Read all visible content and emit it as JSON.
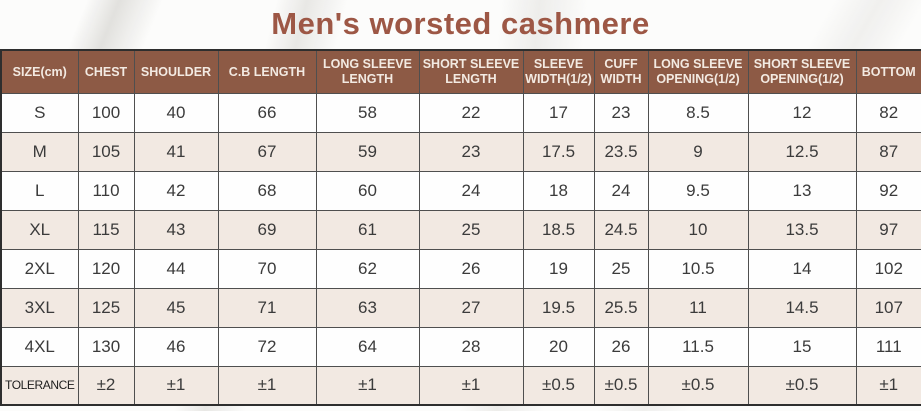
{
  "title": "Men's worsted cashmere",
  "colors": {
    "title": "#9d5745",
    "header_bg": "#8d5a45",
    "header_text": "#f3eae2",
    "row_beige": "#f2e9e2",
    "row_white": "#fefefe",
    "border": "#4f4f4f"
  },
  "chart_data": {
    "type": "table",
    "title": "Men's worsted cashmere",
    "headers": [
      "SIZE(cm)",
      "CHEST",
      "SHOULDER",
      "C.B LENGTH",
      "LONG SLEEVE LENGTH",
      "SHORT SLEEVE LENGTH",
      "SLEEVE WIDTH(1/2)",
      "CUFF WIDTH",
      "LONG SLEEVE OPENING(1/2)",
      "SHORT SLEEVE OPENING(1/2)",
      "BOTTOM"
    ],
    "rows": [
      {
        "size": "S",
        "values": [
          "100",
          "40",
          "66",
          "58",
          "22",
          "17",
          "23",
          "8.5",
          "12",
          "82"
        ]
      },
      {
        "size": "M",
        "values": [
          "105",
          "41",
          "67",
          "59",
          "23",
          "17.5",
          "23.5",
          "9",
          "12.5",
          "87"
        ]
      },
      {
        "size": "L",
        "values": [
          "110",
          "42",
          "68",
          "60",
          "24",
          "18",
          "24",
          "9.5",
          "13",
          "92"
        ]
      },
      {
        "size": "XL",
        "values": [
          "115",
          "43",
          "69",
          "61",
          "25",
          "18.5",
          "24.5",
          "10",
          "13.5",
          "97"
        ]
      },
      {
        "size": "2XL",
        "values": [
          "120",
          "44",
          "70",
          "62",
          "26",
          "19",
          "25",
          "10.5",
          "14",
          "102"
        ]
      },
      {
        "size": "3XL",
        "values": [
          "125",
          "45",
          "71",
          "63",
          "27",
          "19.5",
          "25.5",
          "11",
          "14.5",
          "107"
        ]
      },
      {
        "size": "4XL",
        "values": [
          "130",
          "46",
          "72",
          "64",
          "28",
          "20",
          "26",
          "11.5",
          "15",
          "111"
        ]
      },
      {
        "size": "TOLERANCE",
        "values": [
          "±2",
          "±1",
          "±1",
          "±1",
          "±1",
          "±0.5",
          "±0.5",
          "±0.5",
          "±0.5",
          "±1"
        ]
      }
    ]
  }
}
